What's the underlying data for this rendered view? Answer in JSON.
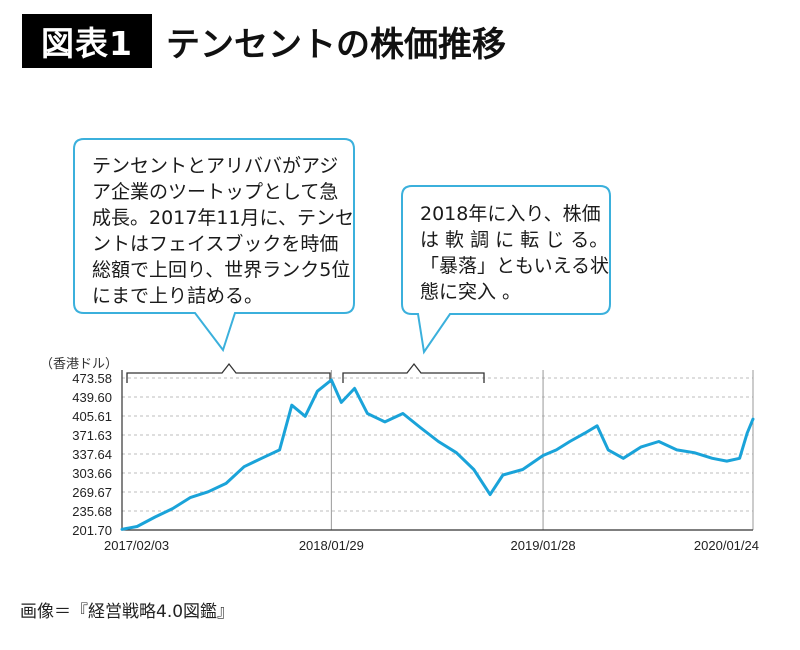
{
  "header": {
    "badge": "図表1",
    "title": "テンセントの株価推移"
  },
  "callouts": [
    {
      "text": "テンセントとアリババがアジ\nア企業のツートップとして急\n成長。2017年11月に、テンセ\nントはフェイスブックを時価\n総額で上回り、世界ランク5位\nにまで上り詰める。"
    },
    {
      "text": "2018年に入り、株価\nは 軟 調 に 転 じ る。\n「暴落」ともいえる状\n態に突入 。"
    }
  ],
  "source": "画像＝『経営戦略4.0図鑑』",
  "colors": {
    "line": "#1aa3d9",
    "callout_border": "#3bb0dc",
    "grid": "#bdbdbd"
  },
  "chart_data": {
    "type": "line",
    "ylabel": "（香港ドル）",
    "xlabel": "",
    "title": "",
    "ylim": [
      201.7,
      473.58
    ],
    "yticks": [
      "473.58",
      "439.60",
      "405.61",
      "371.63",
      "337.64",
      "303.66",
      "269.67",
      "235.68",
      "201.70"
    ],
    "xticks": [
      "2017/02/03",
      "2018/01/29",
      "2019/01/28",
      "2020/01/24"
    ],
    "x": [
      "2017-02-03",
      "2017-03-01",
      "2017-04-01",
      "2017-05-01",
      "2017-06-01",
      "2017-07-01",
      "2017-08-01",
      "2017-09-01",
      "2017-10-01",
      "2017-11-01",
      "2017-11-22",
      "2017-12-15",
      "2018-01-05",
      "2018-01-29",
      "2018-02-15",
      "2018-03-10",
      "2018-04-01",
      "2018-05-01",
      "2018-06-01",
      "2018-07-01",
      "2018-08-01",
      "2018-09-01",
      "2018-10-01",
      "2018-10-29",
      "2018-11-20",
      "2018-12-24",
      "2019-01-28",
      "2019-02-20",
      "2019-03-15",
      "2019-04-10",
      "2019-05-01",
      "2019-05-20",
      "2019-06-15",
      "2019-07-15",
      "2019-08-15",
      "2019-09-15",
      "2019-10-15",
      "2019-11-15",
      "2019-12-10",
      "2020-01-01",
      "2020-01-14",
      "2020-01-24"
    ],
    "series": [
      {
        "values": [
          203,
          208,
          225,
          240,
          260,
          270,
          285,
          315,
          330,
          345,
          425,
          405,
          450,
          470,
          430,
          455,
          410,
          395,
          410,
          385,
          360,
          340,
          310,
          265,
          300,
          310,
          335,
          345,
          360,
          375,
          388,
          345,
          330,
          350,
          360,
          345,
          340,
          330,
          325,
          330,
          375,
          400
        ]
      }
    ]
  }
}
